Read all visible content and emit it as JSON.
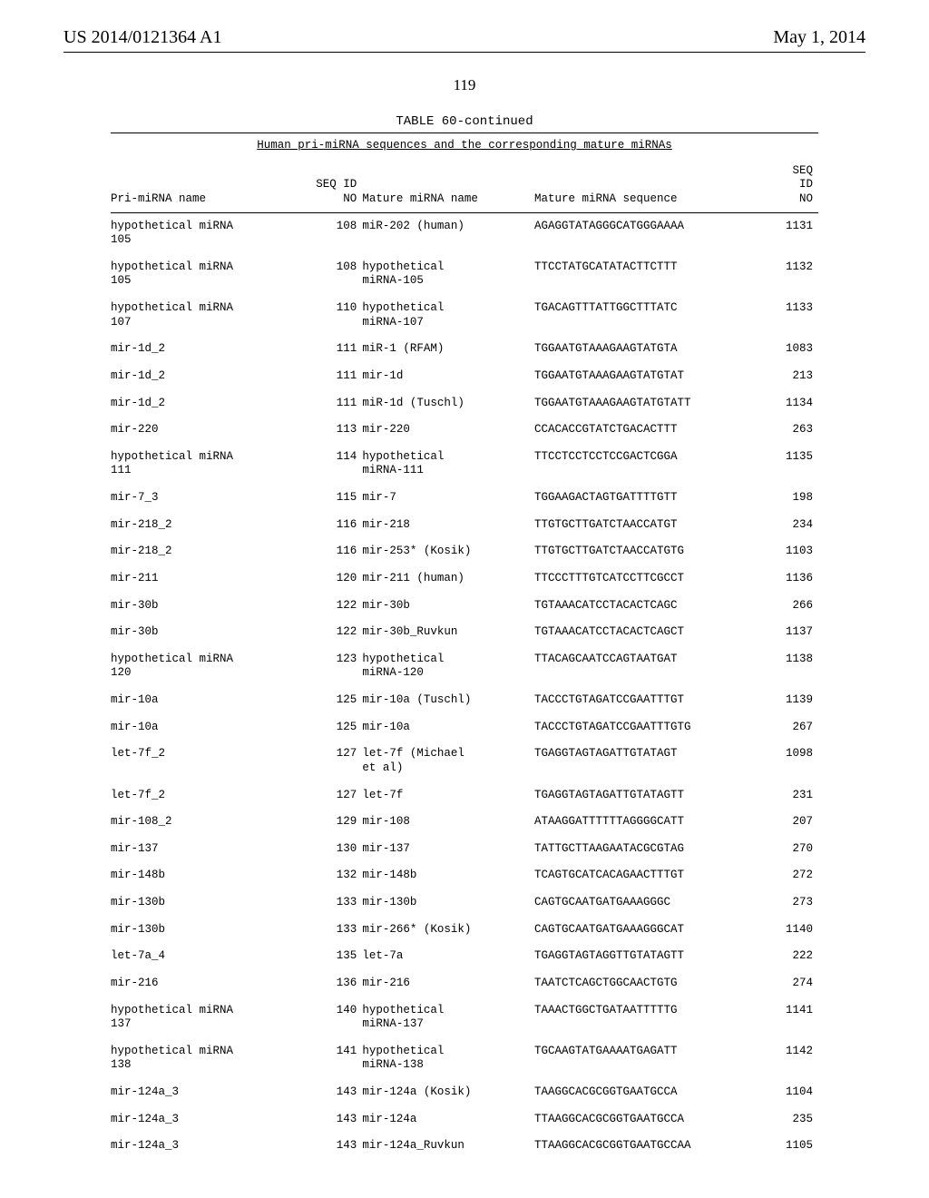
{
  "header": {
    "publication_number": "US 2014/0121364 A1",
    "publication_date": "May 1, 2014"
  },
  "page_number": "119",
  "table": {
    "caption": "TABLE 60-continued",
    "subtitle": "Human pri-miRNA sequences and the corresponding mature miRNAs",
    "columns": {
      "pri_name": "Pri-miRNA name",
      "seq_id_top": "SEQ ID",
      "seq_id_bottom": "NO",
      "mature_name": "Mature miRNA name",
      "mature_seq": "Mature miRNA sequence",
      "seq_no_top": "SEQ",
      "seq_no_mid": "ID",
      "seq_no_bottom": "NO"
    },
    "rows": [
      {
        "pri": "hypothetical miRNA 105",
        "seqid": "108",
        "matname": "miR-202 (human)",
        "matseq": "AGAGGTATAGGGCATGGGAAAA",
        "seqno": "1131"
      },
      {
        "pri": "hypothetical miRNA 105",
        "seqid": "108",
        "matname": "hypothetical miRNA-105",
        "matseq": "TTCCTATGCATATACTTCTTT",
        "seqno": "1132"
      },
      {
        "pri": "hypothetical miRNA 107",
        "seqid": "110",
        "matname": "hypothetical miRNA-107",
        "matseq": "TGACAGTTTATTGGCTTTATC",
        "seqno": "1133"
      },
      {
        "pri": "mir-1d_2",
        "seqid": "111",
        "matname": "miR-1 (RFAM)",
        "matseq": "TGGAATGTAAAGAAGTATGTA",
        "seqno": "1083"
      },
      {
        "pri": "mir-1d_2",
        "seqid": "111",
        "matname": "mir-1d",
        "matseq": "TGGAATGTAAAGAAGTATGTAT",
        "seqno": "213"
      },
      {
        "pri": "mir-1d_2",
        "seqid": "111",
        "matname": "miR-1d (Tuschl)",
        "matseq": "TGGAATGTAAAGAAGTATGTATT",
        "seqno": "1134"
      },
      {
        "pri": "mir-220",
        "seqid": "113",
        "matname": "mir-220",
        "matseq": "CCACACCGTATCTGACACTTT",
        "seqno": "263"
      },
      {
        "pri": "hypothetical miRNA 111",
        "seqid": "114",
        "matname": "hypothetical miRNA-111",
        "matseq": "TTCCTCCTCCTCCGACTCGGA",
        "seqno": "1135"
      },
      {
        "pri": "mir-7_3",
        "seqid": "115",
        "matname": "mir-7",
        "matseq": "TGGAAGACTAGTGATTTTGTT",
        "seqno": "198"
      },
      {
        "pri": "mir-218_2",
        "seqid": "116",
        "matname": "mir-218",
        "matseq": "TTGTGCTTGATCTAACCATGT",
        "seqno": "234"
      },
      {
        "pri": "mir-218_2",
        "seqid": "116",
        "matname": "mir-253* (Kosik)",
        "matseq": "TTGTGCTTGATCTAACCATGTG",
        "seqno": "1103"
      },
      {
        "pri": "mir-211",
        "seqid": "120",
        "matname": "mir-211 (human)",
        "matseq": "TTCCCTTTGTCATCCTTCGCCT",
        "seqno": "1136"
      },
      {
        "pri": "mir-30b",
        "seqid": "122",
        "matname": "mir-30b",
        "matseq": "TGTAAACATCCTACACTCAGC",
        "seqno": "266"
      },
      {
        "pri": "mir-30b",
        "seqid": "122",
        "matname": "mir-30b_Ruvkun",
        "matseq": "TGTAAACATCCTACACTCAGCT",
        "seqno": "1137"
      },
      {
        "pri": "hypothetical miRNA 120",
        "seqid": "123",
        "matname": "hypothetical miRNA-120",
        "matseq": "TTACAGCAATCCAGTAATGAT",
        "seqno": "1138"
      },
      {
        "pri": "mir-10a",
        "seqid": "125",
        "matname": "mir-10a (Tuschl)",
        "matseq": "TACCCTGTAGATCCGAATTTGT",
        "seqno": "1139"
      },
      {
        "pri": "mir-10a",
        "seqid": "125",
        "matname": "mir-10a",
        "matseq": "TACCCTGTAGATCCGAATTTGTG",
        "seqno": "267"
      },
      {
        "pri": "let-7f_2",
        "seqid": "127",
        "matname": "let-7f (Michael et al)",
        "matseq": "TGAGGTAGTAGATTGTATAGT",
        "seqno": "1098"
      },
      {
        "pri": "let-7f_2",
        "seqid": "127",
        "matname": "let-7f",
        "matseq": "TGAGGTAGTAGATTGTATAGTT",
        "seqno": "231"
      },
      {
        "pri": "mir-108_2",
        "seqid": "129",
        "matname": "mir-108",
        "matseq": "ATAAGGATTTTTTAGGGGCATT",
        "seqno": "207"
      },
      {
        "pri": "mir-137",
        "seqid": "130",
        "matname": "mir-137",
        "matseq": "TATTGCTTAAGAATACGCGTAG",
        "seqno": "270"
      },
      {
        "pri": "mir-148b",
        "seqid": "132",
        "matname": "mir-148b",
        "matseq": "TCAGTGCATCACAGAACTTTGT",
        "seqno": "272"
      },
      {
        "pri": "mir-130b",
        "seqid": "133",
        "matname": "mir-130b",
        "matseq": "CAGTGCAATGATGAAAGGGC",
        "seqno": "273"
      },
      {
        "pri": "mir-130b",
        "seqid": "133",
        "matname": "mir-266* (Kosik)",
        "matseq": "CAGTGCAATGATGAAAGGGCAT",
        "seqno": "1140"
      },
      {
        "pri": "let-7a_4",
        "seqid": "135",
        "matname": "let-7a",
        "matseq": "TGAGGTAGTAGGTTGTATAGTT",
        "seqno": "222"
      },
      {
        "pri": "mir-216",
        "seqid": "136",
        "matname": "mir-216",
        "matseq": "TAATCTCAGCTGGCAACTGTG",
        "seqno": "274"
      },
      {
        "pri": "hypothetical miRNA 137",
        "seqid": "140",
        "matname": "hypothetical miRNA-137",
        "matseq": "TAAACTGGCTGATAATTTTTG",
        "seqno": "1141"
      },
      {
        "pri": "hypothetical miRNA 138",
        "seqid": "141",
        "matname": "hypothetical miRNA-138",
        "matseq": "TGCAAGTATGAAAATGAGATT",
        "seqno": "1142"
      },
      {
        "pri": "mir-124a_3",
        "seqid": "143",
        "matname": "mir-124a (Kosik)",
        "matseq": "TAAGGCACGCGGTGAATGCCA",
        "seqno": "1104"
      },
      {
        "pri": "mir-124a_3",
        "seqid": "143",
        "matname": "mir-124a",
        "matseq": "TTAAGGCACGCGGTGAATGCCA",
        "seqno": "235"
      },
      {
        "pri": "mir-124a_3",
        "seqid": "143",
        "matname": "mir-124a_Ruvkun",
        "matseq": "TTAAGGCACGCGGTGAATGCCAA",
        "seqno": "1105"
      }
    ]
  }
}
